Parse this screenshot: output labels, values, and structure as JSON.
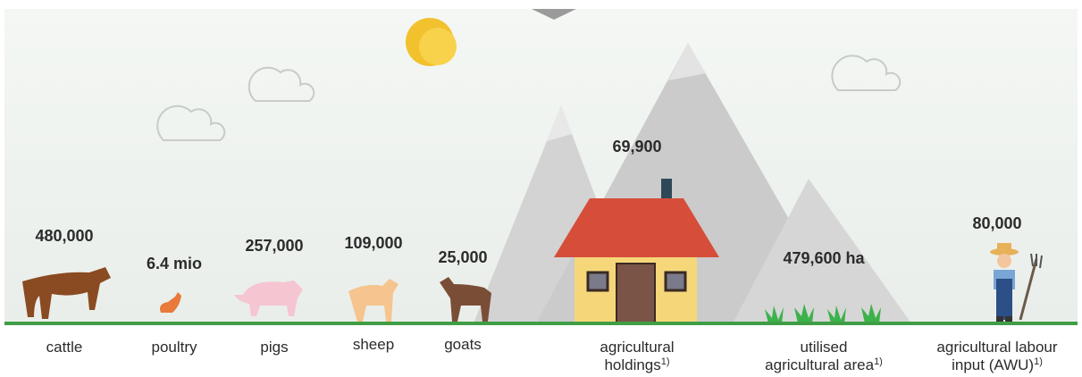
{
  "items": [
    {
      "value": "480,000",
      "label": [
        "cattle"
      ]
    },
    {
      "value": "6.4 mio",
      "label": [
        "poultry"
      ]
    },
    {
      "value": "257,000",
      "label": [
        "pigs"
      ]
    },
    {
      "value": "109,000",
      "label": [
        "sheep"
      ]
    },
    {
      "value": "25,000",
      "label": [
        "goats"
      ]
    },
    {
      "value": "69,900",
      "label": [
        "agricultural",
        "holdings"
      ],
      "footnote": "1)"
    },
    {
      "value": "479,600 ha",
      "label": [
        "utilised",
        "agricultural area"
      ],
      "footnote": "1)"
    },
    {
      "value": "80,000",
      "label": [
        "agricultural labour",
        "input (AWU)"
      ],
      "footnote": "1)"
    }
  ]
}
